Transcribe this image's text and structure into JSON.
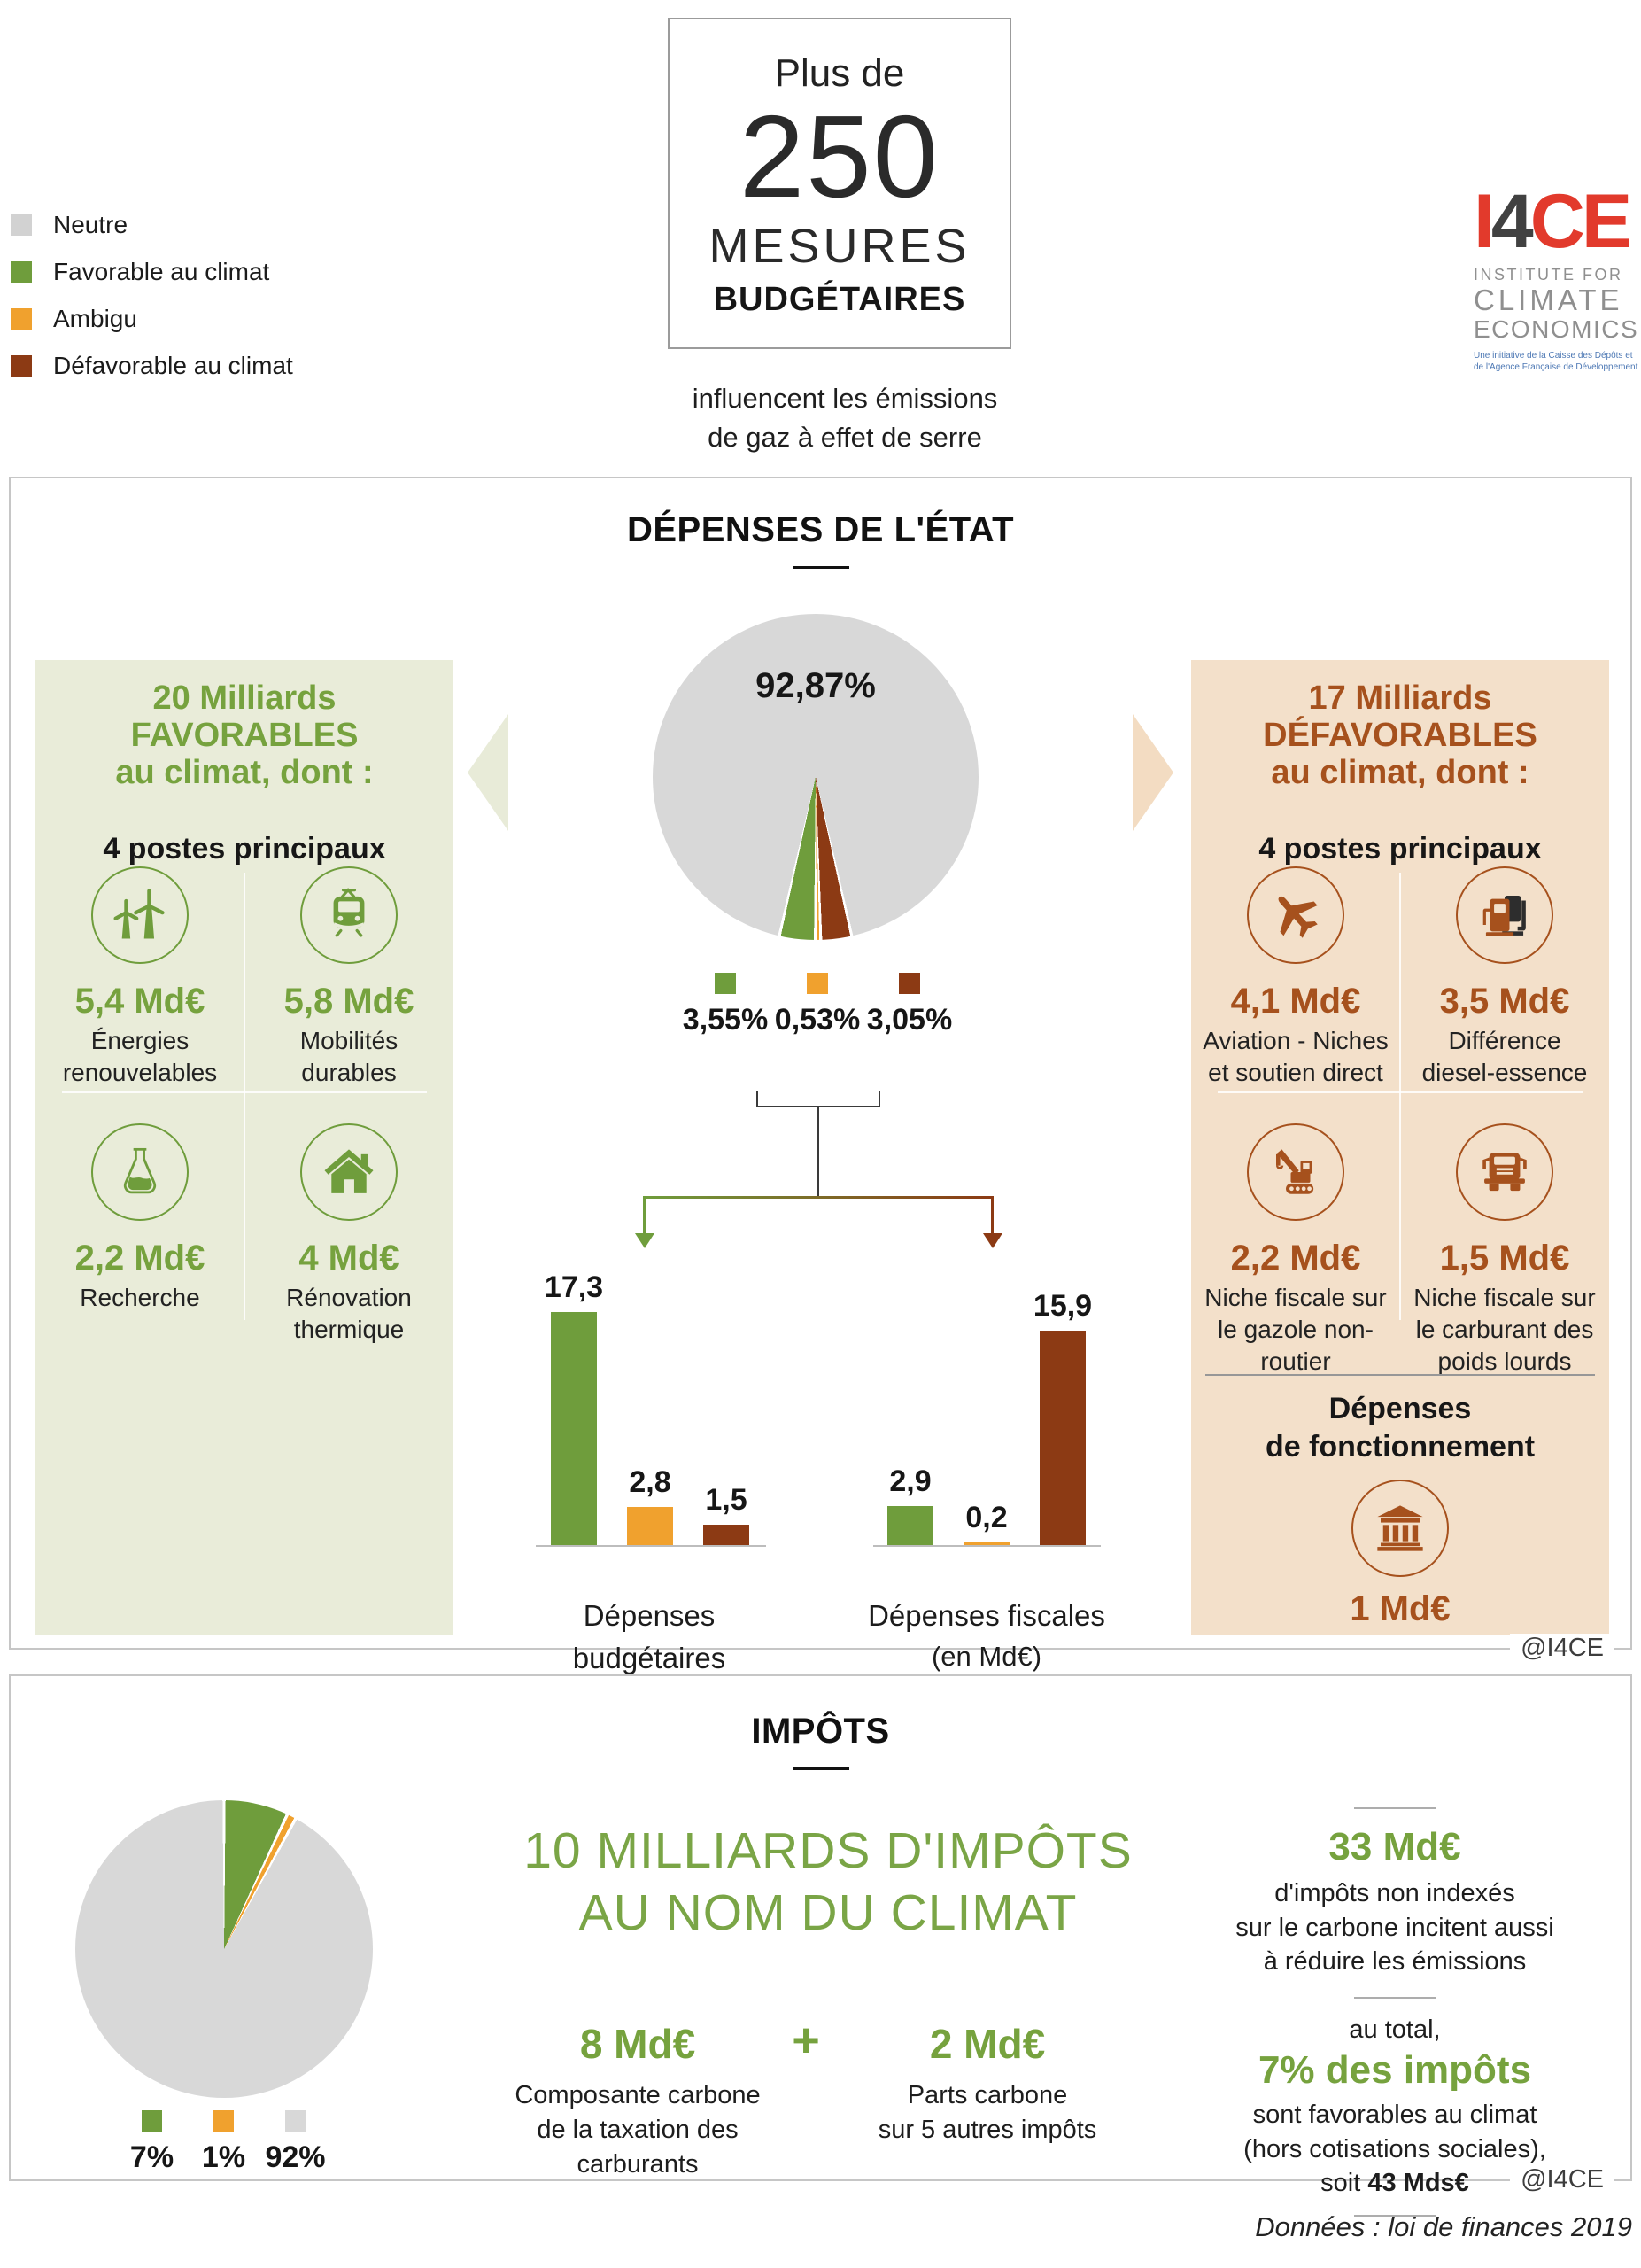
{
  "legend": {
    "items": [
      {
        "label": "Neutre",
        "color": "#d2d2d2"
      },
      {
        "label": "Favorable au climat",
        "color": "#6f9d3c"
      },
      {
        "label": "Ambigu",
        "color": "#f0a12e"
      },
      {
        "label": "Défavorable au climat",
        "color": "#8c3a14"
      }
    ]
  },
  "header": {
    "box_top": "Plus de",
    "box_number": "250",
    "box_mid": "MESURES",
    "box_bottom": "BUDGÉTAIRES",
    "subtitle_l1": "influencent les émissions",
    "subtitle_l2": "de gaz à effet de serre"
  },
  "logo": {
    "word_i": "I",
    "word_4": "4",
    "word_ce": "CE",
    "line1": "INSTITUTE FOR",
    "line2": "CLIMATE",
    "line3": "ECONOMICS",
    "tagline_l1": "Une initiative de la Caisse des Dépôts et",
    "tagline_l2": "de l'Agence Française de Développement"
  },
  "panel_depenses": {
    "title": "DÉPENSES DE L'ÉTAT",
    "credit": "@I4CE",
    "left": {
      "title_l1": "20 Milliards",
      "title_l2": "FAVORABLES",
      "title_l3": "au climat, dont :",
      "subtitle": "4 postes principaux",
      "items": [
        {
          "icon": "wind-turbine-icon",
          "value": "5,4 Md€",
          "label": "Énergies renouvelables"
        },
        {
          "icon": "tram-icon",
          "value": "5,8 Md€",
          "label": "Mobilités durables"
        },
        {
          "icon": "flask-icon",
          "value": "2,2 Md€",
          "label": "Recherche"
        },
        {
          "icon": "house-icon",
          "value": "4 Md€",
          "label": "Rénovation thermique"
        }
      ]
    },
    "right": {
      "title_l1": "17 Milliards",
      "title_l2": "DÉFAVORABLES",
      "title_l3": "au climat, dont :",
      "subtitle": "4 postes principaux",
      "items": [
        {
          "icon": "airplane-icon",
          "value": "4,1 Md€",
          "label": "Aviation - Niches et soutien direct"
        },
        {
          "icon": "fuel-pump-icon",
          "value": "3,5 Md€",
          "label": "Différence diesel-essence"
        },
        {
          "icon": "excavator-icon",
          "value": "2,2 Md€",
          "label": "Niche fiscale sur le gazole non-routier"
        },
        {
          "icon": "truck-icon",
          "value": "1,5 Md€",
          "label": "Niche fiscale sur le carburant des poids lourds"
        }
      ],
      "functioning": {
        "title_l1": "Dépenses",
        "title_l2": "de fonctionnement",
        "icon": "bank-icon",
        "value": "1 Md€"
      }
    }
  },
  "chart_data": [
    {
      "type": "pie",
      "name": "repartition-depenses-etat",
      "center_label": "92,87%",
      "start_deg": 167.2,
      "gap_deg": 0.5,
      "segments": [
        {
          "name": "Défavorable au climat",
          "value": 3.05,
          "color": "#8c3a14"
        },
        {
          "name": "Ambigu",
          "value": 0.53,
          "color": "#f0a12e"
        },
        {
          "name": "Favorable au climat",
          "value": 3.55,
          "color": "#6f9d3c"
        },
        {
          "name": "Neutre",
          "value": 92.87,
          "color": "#d8d8d8"
        }
      ],
      "legend": [
        {
          "label": "3,55%",
          "color": "#6f9d3c"
        },
        {
          "label": "0,53%",
          "color": "#f0a12e"
        },
        {
          "label": "3,05%",
          "color": "#8c3a14"
        }
      ]
    },
    {
      "type": "bar",
      "title_l1": "Dépenses budgétaires",
      "title_l2": "(en Md€)",
      "categories": [
        "Favorable au climat",
        "Ambigu",
        "Défavorable au climat"
      ],
      "values": [
        17.3,
        2.8,
        1.5
      ],
      "value_labels": [
        "17,3",
        "2,8",
        "1,5"
      ],
      "colors": [
        "#6f9d3c",
        "#f0a12e",
        "#8c3a14"
      ],
      "ylim": [
        0,
        18
      ]
    },
    {
      "type": "bar",
      "title_l1": "Dépenses fiscales",
      "title_l2": "(en Md€)",
      "categories": [
        "Favorable au climat",
        "Ambigu",
        "Défavorable au climat"
      ],
      "values": [
        2.9,
        0.2,
        15.9
      ],
      "value_labels": [
        "2,9",
        "0,2",
        "15,9"
      ],
      "colors": [
        "#6f9d3c",
        "#f0a12e",
        "#8c3a14"
      ],
      "ylim": [
        0,
        18
      ]
    },
    {
      "type": "pie",
      "name": "repartition-impots",
      "start_deg": 0,
      "gap_deg": 0.6,
      "segments": [
        {
          "name": "Favorable au climat",
          "value": 7,
          "color": "#6f9d3c"
        },
        {
          "name": "Ambigu",
          "value": 1,
          "color": "#f0a12e"
        },
        {
          "name": "Neutre",
          "value": 92,
          "color": "#d8d8d8"
        }
      ],
      "legend": [
        {
          "label": "7%",
          "color": "#6f9d3c"
        },
        {
          "label": "1%",
          "color": "#f0a12e"
        },
        {
          "label": "92%",
          "color": "#d8d8d8"
        }
      ]
    }
  ],
  "panel_impots": {
    "title": "IMPÔTS",
    "credit": "@I4CE",
    "headline_l1": "10 MILLIARDS D'IMPÔTS",
    "headline_l2": "AU NOM DU CLIMAT",
    "plus": "+",
    "sum1": {
      "value": "8 Md€",
      "label_l1": "Composante carbone",
      "label_l2": "de la taxation des carburants"
    },
    "sum2": {
      "value": "2 Md€",
      "label_l1": "Parts carbone",
      "label_l2": "sur 5 autres impôts"
    },
    "aside": {
      "v1": "33 Md€",
      "p1_l1": "d'impôts non indexés",
      "p1_l2": "sur le carbone incitent aussi",
      "p1_l3": "à réduire les émissions",
      "total_intro": "au total,",
      "v2": "7% des impôts",
      "p2_l1": "sont favorables au climat",
      "p2_l2": "(hors cotisations sociales),",
      "p2_l3_pre": "soit ",
      "p2_l3_bold": "43 Mds€"
    }
  },
  "footer": {
    "source": "Données : loi de finances 2019"
  }
}
